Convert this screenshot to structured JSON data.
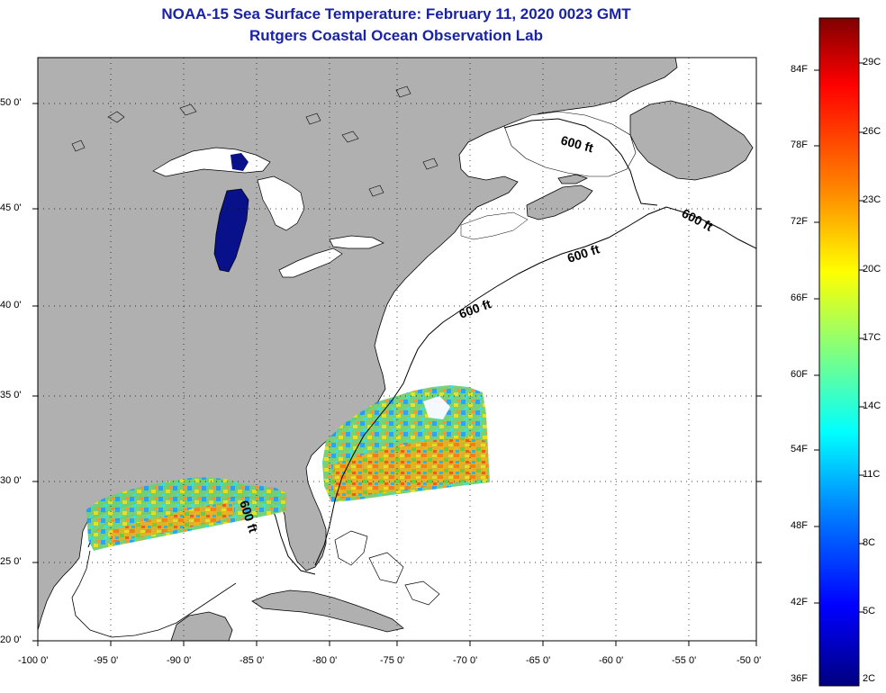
{
  "title": {
    "line1": "NOAA-15 Sea Surface Temperature:  February 11, 2020 0023 GMT",
    "line2": "Rutgers Coastal Ocean Observation Lab"
  },
  "map": {
    "lon_ticks": [
      "-100 0'",
      "-95 0'",
      "-90 0'",
      "-85 0'",
      "-80 0'",
      "-75 0'",
      "-70 0'",
      "-65 0'",
      "-60 0'",
      "-55 0'",
      "-50 0'"
    ],
    "lat_ticks": [
      "50 0'",
      "45 0'",
      "40 0'",
      "35 0'",
      "30 0'",
      "25 0'",
      "20 0'"
    ],
    "contour_label": "600 ft",
    "colors": {
      "land": "#b0b0b0",
      "ocean": "#ffffff",
      "grid": "#000000",
      "lake_ice": "#ffffff",
      "deep_water": "#08108a"
    }
  },
  "colorbar": {
    "fahrenheit": [
      "84F",
      "78F",
      "72F",
      "66F",
      "60F",
      "54F",
      "48F",
      "42F",
      "36F"
    ],
    "celsius": [
      "29C",
      "26C",
      "23C",
      "20C",
      "17C",
      "14C",
      "11C",
      "8C",
      "5C",
      "2C"
    ],
    "gradient": [
      "#800000",
      "#ff0000",
      "#ff8000",
      "#ffff00",
      "#80ff80",
      "#00ffff",
      "#0080ff",
      "#0000ff",
      "#000080"
    ]
  }
}
